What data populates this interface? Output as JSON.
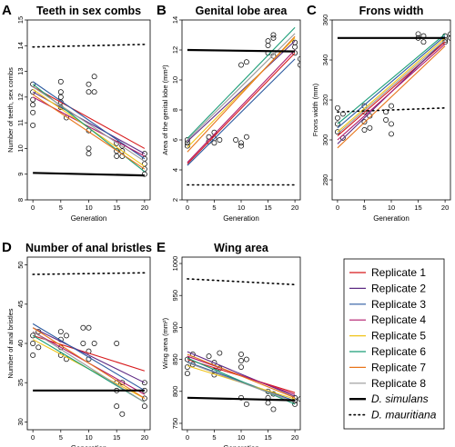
{
  "chart_data": [
    {
      "id": "A",
      "type": "scatter",
      "letter": "A",
      "title": "Teeth in sex combs",
      "xlabel": "Generation",
      "ylabel": "Number of teeth, sex combs",
      "xlim": [
        -1,
        21
      ],
      "ylim": [
        8,
        15
      ],
      "xticks": [
        0,
        5,
        10,
        15,
        20
      ],
      "yticks": [
        8,
        9,
        10,
        11,
        12,
        13,
        14,
        15
      ],
      "points": [
        [
          0,
          12.5
        ],
        [
          0,
          12.2
        ],
        [
          0,
          11.9
        ],
        [
          0,
          11.7
        ],
        [
          0,
          11.4
        ],
        [
          0,
          10.9
        ],
        [
          5,
          12.6
        ],
        [
          5,
          12.2
        ],
        [
          5,
          12.0
        ],
        [
          5,
          11.8
        ],
        [
          5,
          11.6
        ],
        [
          6,
          11.2
        ],
        [
          10,
          12.5
        ],
        [
          10,
          12.2
        ],
        [
          10,
          10.7
        ],
        [
          10,
          10.0
        ],
        [
          10,
          9.8
        ],
        [
          11,
          12.8
        ],
        [
          11,
          12.2
        ],
        [
          15,
          10.2
        ],
        [
          15,
          9.9
        ],
        [
          15,
          9.7
        ],
        [
          16,
          10.1
        ],
        [
          16,
          9.9
        ],
        [
          16,
          9.7
        ],
        [
          20,
          9.8
        ],
        [
          20,
          9.6
        ],
        [
          20,
          9.4
        ],
        [
          20,
          9.2
        ],
        [
          20,
          9.0
        ]
      ],
      "replicates": [
        [
          12.4,
          10.0
        ],
        [
          12.2,
          9.8
        ],
        [
          12.6,
          9.6
        ],
        [
          12.0,
          9.7
        ],
        [
          12.3,
          9.3
        ],
        [
          12.5,
          9.1
        ],
        [
          12.1,
          9.2
        ],
        [
          12.4,
          9.5
        ]
      ],
      "simulans": [
        9.05,
        8.95
      ],
      "mauritiana": [
        13.95,
        14.05
      ]
    },
    {
      "id": "B",
      "type": "scatter",
      "letter": "B",
      "title": "Genital lobe area",
      "xlabel": "Generation",
      "ylabel": "Area of the genital lobe (mm²)",
      "xlim": [
        -1,
        21
      ],
      "ylim": [
        2,
        14
      ],
      "xticks": [
        0,
        5,
        10,
        15,
        20
      ],
      "yticks": [
        2,
        4,
        6,
        8,
        10,
        12,
        14
      ],
      "points": [
        [
          0,
          6.0
        ],
        [
          0,
          5.8
        ],
        [
          0,
          5.6
        ],
        [
          4,
          6.2
        ],
        [
          4,
          5.9
        ],
        [
          5,
          6.5
        ],
        [
          5,
          6.1
        ],
        [
          5,
          5.8
        ],
        [
          6,
          6.0
        ],
        [
          9,
          6.0
        ],
        [
          10,
          5.8
        ],
        [
          10,
          5.6
        ],
        [
          10,
          11.0
        ],
        [
          11,
          11.2
        ],
        [
          11,
          6.2
        ],
        [
          15,
          12.3
        ],
        [
          15,
          11.8
        ],
        [
          15,
          12.6
        ],
        [
          16,
          13.0
        ],
        [
          16,
          12.8
        ],
        [
          16,
          11.6
        ],
        [
          20,
          12.5
        ],
        [
          20,
          12.2
        ],
        [
          20,
          11.8
        ],
        [
          21,
          11.4
        ],
        [
          21,
          11.0
        ]
      ],
      "replicates": [
        [
          4.4,
          11.8
        ],
        [
          5.9,
          12.6
        ],
        [
          4.3,
          11.4
        ],
        [
          4.5,
          12.0
        ],
        [
          5.5,
          12.8
        ],
        [
          6.1,
          13.5
        ],
        [
          5.2,
          12.9
        ],
        [
          6.0,
          13.1
        ]
      ],
      "simulans": [
        12.0,
        11.9
      ],
      "mauritiana": [
        3.0,
        3.0
      ]
    },
    {
      "id": "C",
      "type": "scatter",
      "letter": "C",
      "title": "Frons width",
      "xlabel": "Generation",
      "ylabel": "Frons width (mm)",
      "xlim": [
        -1,
        21
      ],
      "ylim": [
        270,
        360
      ],
      "xticks": [
        0,
        5,
        10,
        15,
        20
      ],
      "yticks": [
        280,
        300,
        320,
        340,
        360
      ],
      "points": [
        [
          0,
          316
        ],
        [
          0,
          311
        ],
        [
          0,
          308
        ],
        [
          0,
          304
        ],
        [
          1,
          313
        ],
        [
          1,
          301
        ],
        [
          5,
          317
        ],
        [
          5,
          314
        ],
        [
          5,
          309
        ],
        [
          5,
          305
        ],
        [
          6,
          312
        ],
        [
          6,
          306
        ],
        [
          9,
          314
        ],
        [
          9,
          310
        ],
        [
          10,
          308
        ],
        [
          10,
          303
        ],
        [
          10,
          317
        ],
        [
          15,
          353
        ],
        [
          15,
          351
        ],
        [
          16,
          352
        ],
        [
          16,
          349
        ],
        [
          20,
          352
        ],
        [
          20,
          350
        ],
        [
          20,
          349
        ],
        [
          21,
          353
        ],
        [
          21,
          351
        ]
      ],
      "replicates": [
        [
          302,
          349
        ],
        [
          298,
          350
        ],
        [
          306,
          352
        ],
        [
          300,
          348
        ],
        [
          304,
          351
        ],
        [
          308,
          353
        ],
        [
          296,
          347
        ],
        [
          303,
          350
        ]
      ],
      "simulans": [
        351,
        351
      ],
      "mauritiana": [
        314,
        316
      ]
    },
    {
      "id": "D",
      "type": "scatter",
      "letter": "D",
      "title": "Number of anal bristles",
      "xlabel": "Generation",
      "ylabel": "Number of anal bristles",
      "xlim": [
        -1,
        21
      ],
      "ylim": [
        29,
        51
      ],
      "xticks": [
        0,
        5,
        10,
        15,
        20
      ],
      "yticks": [
        30,
        35,
        40,
        45,
        50
      ],
      "points": [
        [
          0,
          41
        ],
        [
          0,
          40
        ],
        [
          0,
          38.5
        ],
        [
          1,
          39.5
        ],
        [
          1,
          41.5
        ],
        [
          5,
          41.5
        ],
        [
          5,
          40.5
        ],
        [
          5,
          39.5
        ],
        [
          5,
          38.5
        ],
        [
          6,
          41
        ],
        [
          6,
          38
        ],
        [
          9,
          42
        ],
        [
          9,
          40
        ],
        [
          10,
          42
        ],
        [
          10,
          39
        ],
        [
          10,
          38
        ],
        [
          11,
          40
        ],
        [
          15,
          40
        ],
        [
          15,
          35
        ],
        [
          15,
          34
        ],
        [
          15,
          32
        ],
        [
          16,
          35
        ],
        [
          16,
          31
        ],
        [
          20,
          35
        ],
        [
          20,
          34
        ],
        [
          20,
          33
        ],
        [
          20,
          32
        ]
      ],
      "replicates": [
        [
          41,
          36.5
        ],
        [
          42,
          35
        ],
        [
          42.5,
          34
        ],
        [
          41.5,
          33.5
        ],
        [
          40.5,
          33
        ],
        [
          41,
          32.5
        ],
        [
          42,
          33
        ],
        [
          41.5,
          32.5
        ]
      ],
      "simulans": [
        34,
        34
      ],
      "mauritiana": [
        48.8,
        49
      ]
    },
    {
      "id": "E",
      "type": "scatter",
      "letter": "E",
      "title": "Wing area",
      "xlabel": "Generation",
      "ylabel": "Wing area (mm²)",
      "xlim": [
        -1,
        21
      ],
      "ylim": [
        740,
        1010
      ],
      "xticks": [
        0,
        5,
        10,
        15,
        20
      ],
      "yticks": [
        750,
        800,
        850,
        900,
        950,
        1000
      ],
      "points": [
        [
          0,
          850
        ],
        [
          0,
          838
        ],
        [
          0,
          828
        ],
        [
          1,
          858
        ],
        [
          1,
          842
        ],
        [
          4,
          855
        ],
        [
          5,
          845
        ],
        [
          5,
          832
        ],
        [
          5,
          826
        ],
        [
          6,
          860
        ],
        [
          6,
          836
        ],
        [
          10,
          858
        ],
        [
          10,
          848
        ],
        [
          10,
          838
        ],
        [
          10,
          790
        ],
        [
          11,
          850
        ],
        [
          11,
          780
        ],
        [
          15,
          800
        ],
        [
          15,
          790
        ],
        [
          15,
          782
        ],
        [
          16,
          796
        ],
        [
          16,
          772
        ],
        [
          20,
          790
        ],
        [
          20,
          785
        ],
        [
          20,
          780
        ],
        [
          21,
          788
        ]
      ],
      "replicates": [
        [
          850,
          798
        ],
        [
          862,
          792
        ],
        [
          846,
          785
        ],
        [
          855,
          795
        ],
        [
          840,
          788
        ],
        [
          852,
          780
        ],
        [
          858,
          790
        ],
        [
          845,
          783
        ]
      ],
      "simulans": [
        790,
        786
      ],
      "mauritiana": [
        976,
        967
      ]
    }
  ],
  "legend": {
    "items": [
      {
        "label": "Replicate 1",
        "color": "#d7191c",
        "style": "solid"
      },
      {
        "label": "Replicate 2",
        "color": "#5e2a84",
        "style": "solid"
      },
      {
        "label": "Replicate 3",
        "color": "#2c5aa0",
        "style": "solid"
      },
      {
        "label": "Replicate 4",
        "color": "#b0196a",
        "style": "solid"
      },
      {
        "label": "Replicate 5",
        "color": "#f0c419",
        "style": "solid"
      },
      {
        "label": "Replicate 6",
        "color": "#1b9e77",
        "style": "solid"
      },
      {
        "label": "Replicate 7",
        "color": "#e8751a",
        "style": "solid"
      },
      {
        "label": "Replicate 8",
        "color": "#999999",
        "style": "solid"
      },
      {
        "label": "D. simulans",
        "color": "#000000",
        "style": "thick"
      },
      {
        "label": "D. mauritiana",
        "color": "#000000",
        "style": "dotted"
      }
    ]
  }
}
